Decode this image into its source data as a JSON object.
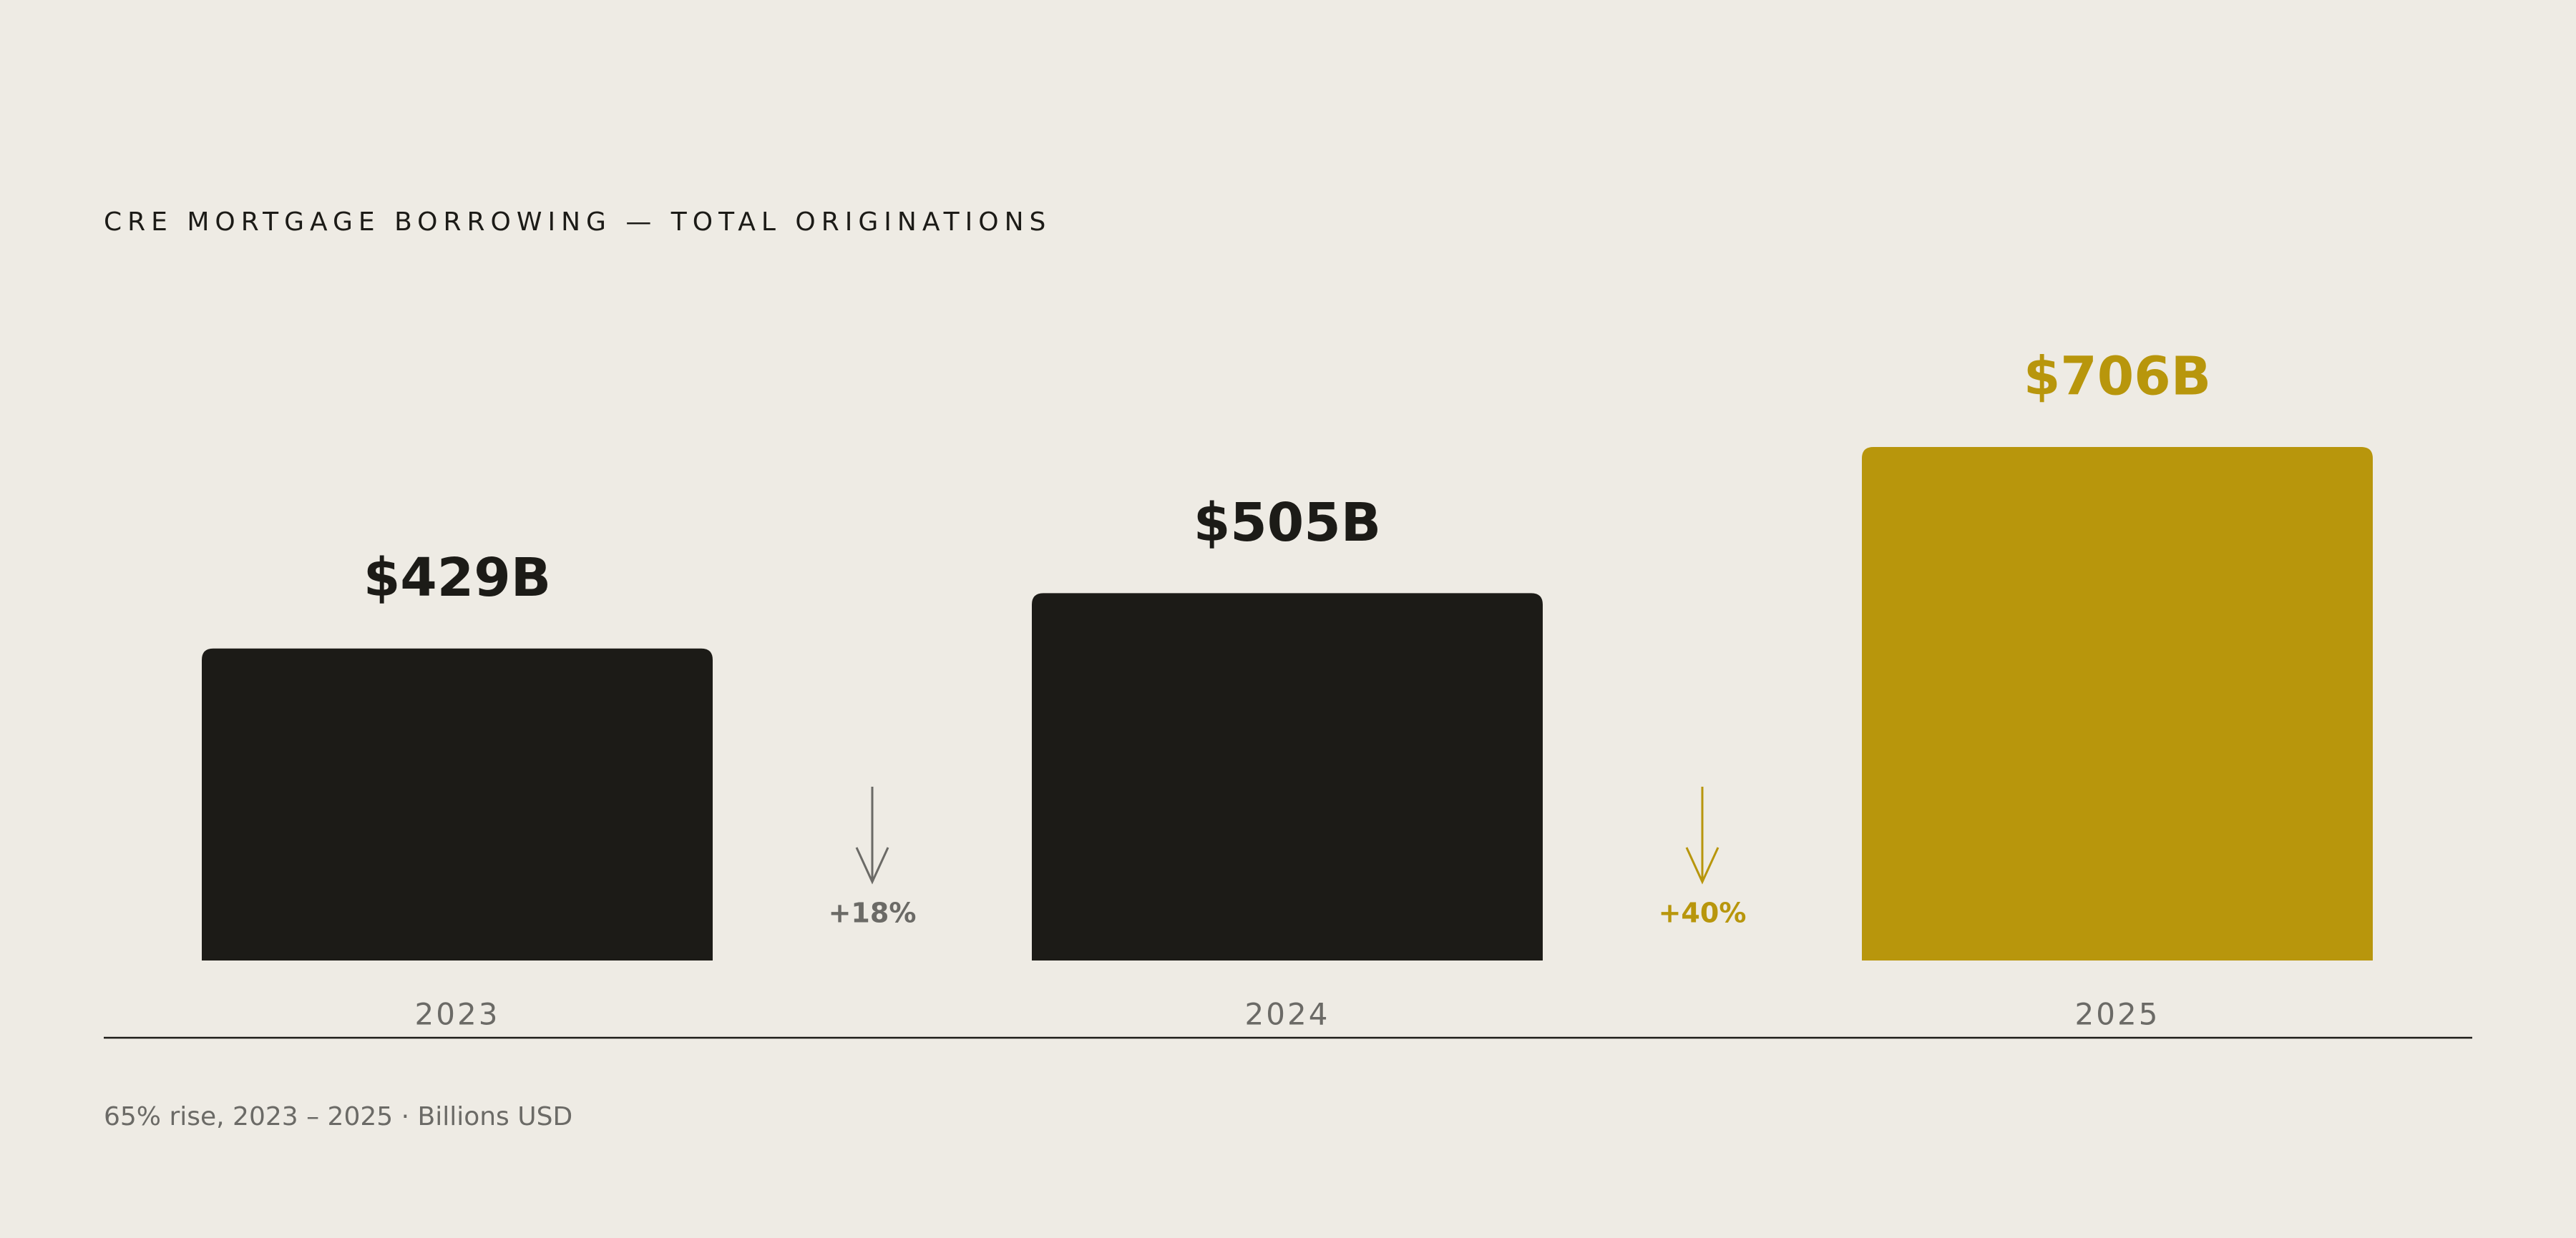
{
  "chart_data": {
    "type": "bar",
    "title": "CRE MORTGAGE BORROWING — TOTAL ORIGINATIONS",
    "categories": [
      "2023",
      "2024",
      "2025"
    ],
    "values": [
      429,
      505,
      706
    ],
    "value_labels": [
      "$429B",
      "$505B",
      "$706B"
    ],
    "colors": [
      "#1c1b17",
      "#1c1b17",
      "#b8960c"
    ],
    "changes": [
      {
        "value": 18,
        "label": "+18%",
        "color": "#6b6a66"
      },
      {
        "value": 40,
        "label": "+40%",
        "color": "#b8960c"
      }
    ],
    "footnote": "65% rise, 2023 – 2025 · Billions USD"
  }
}
